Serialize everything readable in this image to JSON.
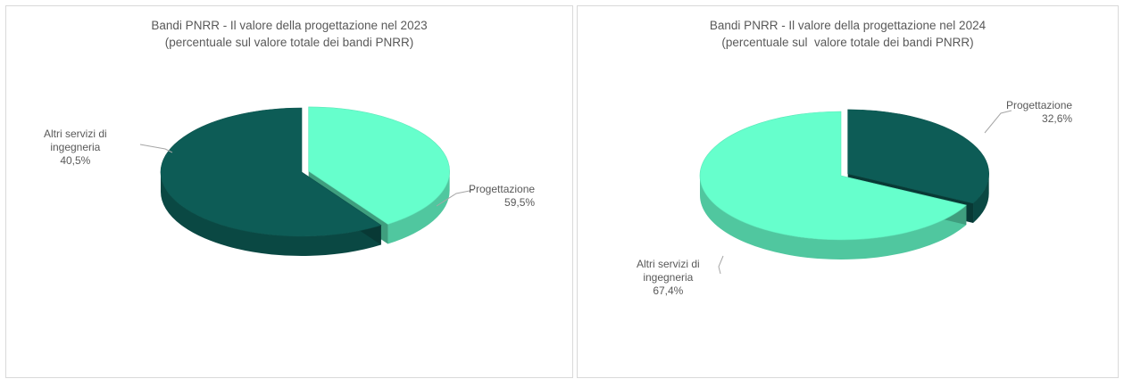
{
  "chart_data": [
    {
      "type": "pie",
      "title_line1": "Bandi PNRR - Il valore della progettazione nel 2023",
      "title_line2": "(percentuale sul valore totale dei bandi PNRR)",
      "slices": [
        {
          "label_line1": "Altri servizi di",
          "label_line2": "ingegneria",
          "value": 40.5,
          "value_text": "40,5%",
          "color": "#66ffcc"
        },
        {
          "label_line1": "Progettazione",
          "label_line2": "",
          "value": 59.5,
          "value_text": "59,5%",
          "color": "#0d5c56"
        }
      ]
    },
    {
      "type": "pie",
      "title_line1": "Bandi PNRR - Il valore della progettazione nel 2024",
      "title_line2": "(percentuale sul  valore totale dei bandi PNRR)",
      "slices": [
        {
          "label_line1": "Progettazione",
          "label_line2": "",
          "value": 32.6,
          "value_text": "32,6%",
          "color": "#0d5c56"
        },
        {
          "label_line1": "Altri servizi di",
          "label_line2": "ingegneria",
          "value": 67.4,
          "value_text": "67,4%",
          "color": "#66ffcc"
        }
      ]
    }
  ]
}
